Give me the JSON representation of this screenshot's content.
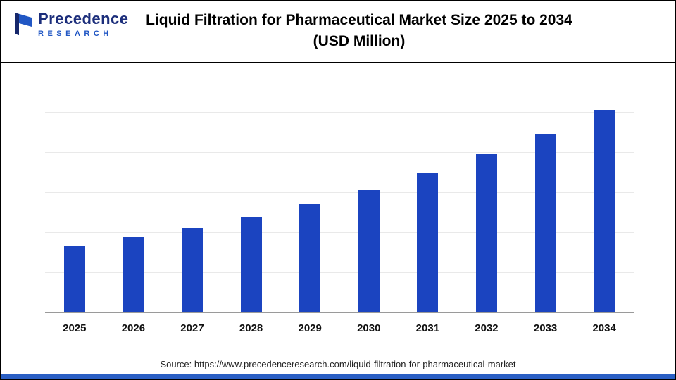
{
  "header": {
    "logo": {
      "brand": "Precedence",
      "sub": "RESEARCH"
    },
    "title_line1": "Liquid Filtration for Pharmaceutical Market Size 2025 to 2034",
    "title_line2": "(USD Million)"
  },
  "chart_data": {
    "type": "bar",
    "title": "Liquid Filtration for Pharmaceutical Market Size 2025 to 2034 (USD Million)",
    "categories": [
      "2025",
      "2026",
      "2027",
      "2028",
      "2029",
      "2030",
      "2031",
      "2032",
      "2033",
      "2034"
    ],
    "values": [
      2500,
      2805,
      3165,
      3575,
      4045,
      4590,
      5200,
      5915,
      6655,
      7565
    ],
    "xlabel": "",
    "ylabel": "",
    "units": "USD Million",
    "ylim": [
      0,
      9000
    ],
    "grid": true,
    "gridline_count": 6,
    "legend": "none",
    "value_labels_shown": false,
    "bar_color": "#1B44C0"
  },
  "footer": {
    "source": "Source: https://www.precedenceresearch.com/liquid-filtration-for-pharmaceutical-market"
  },
  "colors": {
    "bar": "#1B44C0",
    "axis": "#9A9A9A",
    "grid": "#E9E9E9",
    "accent_strip": "#2A5FC4",
    "logo_navy": "#1C2E7B",
    "logo_blue": "#2157C4",
    "title_text": "#000000",
    "border": "#000000"
  }
}
